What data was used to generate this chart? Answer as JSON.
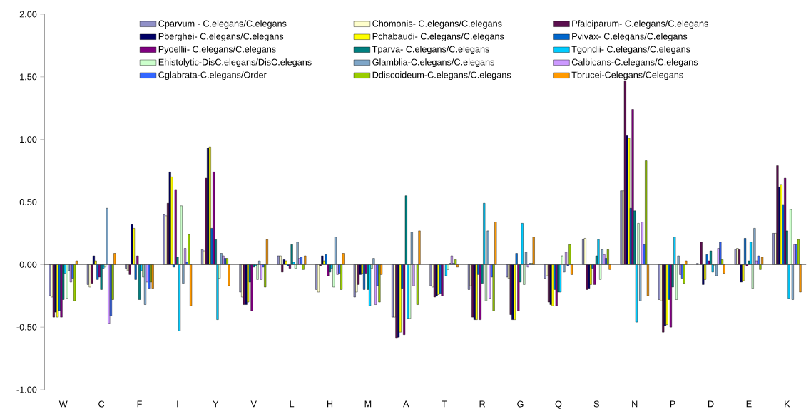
{
  "chart_data": {
    "type": "bar",
    "categories": [
      "W",
      "C",
      "F",
      "I",
      "Y",
      "V",
      "L",
      "H",
      "M",
      "A",
      "T",
      "R",
      "G",
      "Q",
      "S",
      "N",
      "P",
      "D",
      "E",
      "K"
    ],
    "series": [
      {
        "name": "Cparvum - C.elegans/C.elegans",
        "color": "#9090c8",
        "values": [
          -0.25,
          -0.16,
          -0.03,
          0.4,
          0.12,
          -0.22,
          0.07,
          -0.2,
          -0.26,
          -0.42,
          -0.17,
          -0.2,
          -0.1,
          -0.11,
          0.2,
          0.59,
          -0.28,
          0.01,
          0.12,
          0.25
        ]
      },
      {
        "name": "Chomonis- C.elegans/C.elegans",
        "color": "#ffffcc",
        "values": [
          -0.26,
          -0.18,
          -0.05,
          0.39,
          0.11,
          -0.26,
          0.07,
          -0.22,
          -0.22,
          -0.42,
          -0.18,
          -0.17,
          -0.11,
          -0.09,
          0.21,
          0.59,
          -0.29,
          null,
          0.13,
          0.25
        ]
      },
      {
        "name": "Pfalciparum- C.elegans/C.elegans",
        "color": "#5c0f4f",
        "values": [
          -0.42,
          -0.15,
          -0.08,
          0.49,
          0.69,
          -0.32,
          -0.06,
          -0.01,
          -0.16,
          -0.59,
          -0.26,
          -0.42,
          -0.4,
          -0.3,
          -0.2,
          1.47,
          -0.54,
          0.18,
          0.12,
          0.79
        ]
      },
      {
        "name": "Pberghei- C.elegans/C.elegans",
        "color": "#000066",
        "values": [
          -0.38,
          0.07,
          0.32,
          0.74,
          0.93,
          -0.32,
          0.04,
          0.07,
          -0.08,
          -0.58,
          -0.25,
          -0.44,
          -0.44,
          -0.32,
          -0.19,
          1.03,
          -0.49,
          -0.16,
          -0.14,
          0.62
        ]
      },
      {
        "name": "Pchabaudi- C.elegans/C.elegans",
        "color": "#ffff00",
        "values": [
          -0.42,
          0.03,
          0.29,
          0.7,
          0.94,
          -0.3,
          0.03,
          0.03,
          -0.07,
          -0.54,
          -0.24,
          -0.44,
          -0.44,
          -0.33,
          -0.16,
          1.01,
          -0.48,
          -0.12,
          -0.13,
          0.64
        ]
      },
      {
        "name": "Pvivax- C.elegans/C.elegans",
        "color": "#0066cc",
        "values": [
          -0.37,
          -0.12,
          -0.12,
          -0.02,
          0.29,
          -0.14,
          -0.01,
          0.08,
          -0.2,
          -0.19,
          -0.23,
          -0.08,
          0.09,
          -0.2,
          -0.03,
          0.45,
          -0.28,
          0.08,
          0.21,
          0.48
        ]
      },
      {
        "name": "Pyoellii- C.elegans/C.elegans",
        "color": "#800080",
        "values": [
          -0.42,
          -0.1,
          0.07,
          0.6,
          0.74,
          -0.37,
          -0.03,
          -0.09,
          -0.07,
          -0.56,
          -0.25,
          -0.44,
          -0.37,
          -0.33,
          -0.16,
          1.24,
          -0.5,
          0.03,
          -0.01,
          0.69
        ]
      },
      {
        "name": "Tparva- C.elegans/C.elegans",
        "color": "#008080",
        "values": [
          -0.28,
          -0.2,
          -0.28,
          0.06,
          0.2,
          -0.02,
          0.16,
          -0.06,
          -0.2,
          0.55,
          null,
          -0.15,
          -0.14,
          -0.22,
          0.07,
          0.43,
          -0.18,
          0.11,
          0.03,
          0.27
        ]
      },
      {
        "name": "Tgondii- C.elegans/C.elegans",
        "color": "#00ccff",
        "values": [
          -0.07,
          -0.03,
          -0.05,
          -0.53,
          -0.44,
          -0.01,
          0.02,
          -0.03,
          -0.33,
          -0.43,
          -0.09,
          0.49,
          0.33,
          -0.22,
          0.2,
          -0.46,
          0.22,
          -0.06,
          0.18,
          -0.27
        ]
      },
      {
        "name": "Ehistolytic-DisC.elegans/DisC.elegans",
        "color": "#ccffcc",
        "values": [
          -0.27,
          -0.02,
          -0.1,
          0.47,
          -0.11,
          -0.12,
          -0.03,
          -0.18,
          -0.03,
          -0.43,
          -0.04,
          -0.29,
          -0.16,
          0.07,
          -0.12,
          0.33,
          -0.28,
          -0.01,
          -0.19,
          0.44
        ]
      },
      {
        "name": "Glamblia-C.elegans/C.elegans",
        "color": "#7fa6c8",
        "values": [
          -0.05,
          0.45,
          -0.32,
          -0.15,
          0.09,
          0.03,
          0.18,
          0.22,
          0.05,
          0.26,
          0.01,
          0.27,
          0.1,
          -0.06,
          0.12,
          -0.29,
          0.07,
          -0.09,
          0.29,
          -0.28
        ]
      },
      {
        "name": "Calbicans-C.elegans/C.elegans",
        "color": "#cc99ff",
        "values": [
          -0.14,
          -0.47,
          -0.14,
          0.13,
          0.07,
          -0.12,
          0.05,
          -0.08,
          -0.32,
          -0.17,
          0.07,
          -0.27,
          -0.02,
          0.1,
          0.08,
          0.34,
          -0.08,
          0.13,
          0.03,
          0.16
        ]
      },
      {
        "name": "Cglabrata-C.elegans/Order",
        "color": "#3366ff",
        "values": [
          -0.11,
          -0.41,
          -0.19,
          0.02,
          0.05,
          -0.02,
          0.06,
          -0.07,
          -0.17,
          null,
          0.01,
          -0.1,
          0.01,
          -0.01,
          0.05,
          0.16,
          -0.11,
          0.18,
          0.07,
          0.16
        ]
      },
      {
        "name": "Ddiscoideum-C.elegans/C.elegans",
        "color": "#99cc00",
        "values": [
          -0.29,
          -0.28,
          -0.14,
          0.24,
          0.05,
          -0.18,
          -0.04,
          -0.2,
          -0.3,
          -0.32,
          0.04,
          -0.37,
          0.01,
          0.16,
          0.12,
          0.83,
          -0.15,
          0.04,
          -0.04,
          0.2
        ]
      },
      {
        "name": "Tbrucei-Celegans/Celegans",
        "color": "#ff9900",
        "values": [
          0.03,
          0.09,
          -0.19,
          -0.33,
          -0.17,
          0.2,
          0.07,
          0.09,
          -0.08,
          0.27,
          -0.02,
          0.34,
          0.22,
          -0.08,
          -0.04,
          -0.25,
          0.03,
          -0.07,
          0.06,
          -0.22
        ]
      }
    ],
    "ylim": [
      -1.0,
      2.0
    ],
    "yticks": [
      {
        "value": -1.0,
        "label": "-1.00"
      },
      {
        "value": -0.5,
        "label": "-0.50"
      },
      {
        "value": 0.0,
        "label": "0.00"
      },
      {
        "value": 0.5,
        "label": "0.50"
      },
      {
        "value": 1.0,
        "label": "1.00"
      },
      {
        "value": 1.5,
        "label": "1.50"
      },
      {
        "value": 2.0,
        "label": "2.00"
      }
    ],
    "legend": "top"
  }
}
